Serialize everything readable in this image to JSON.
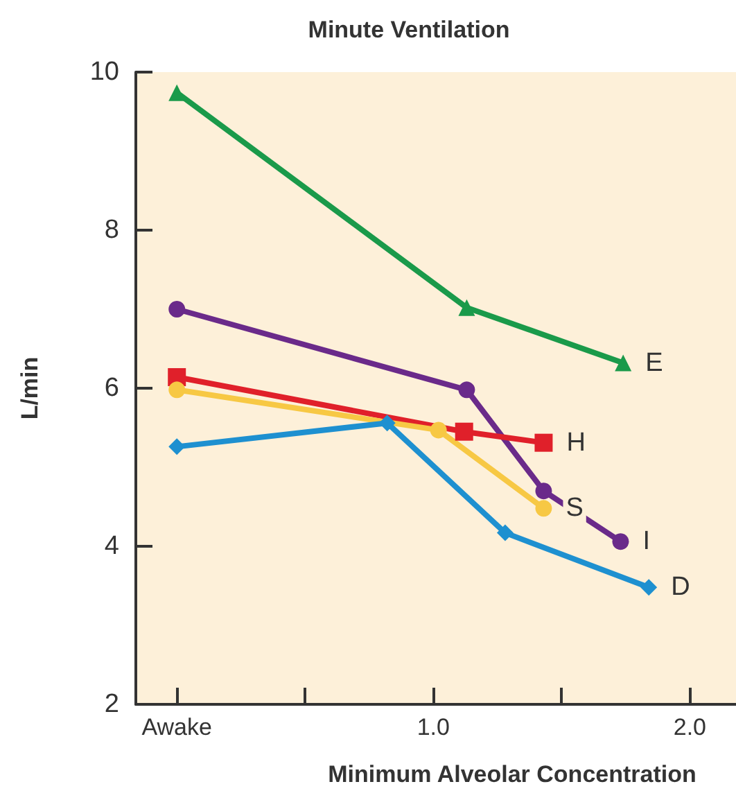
{
  "chart_data": {
    "type": "line",
    "title": "Minute Ventilation",
    "xlabel": "Minimum Alveolar Concentration",
    "ylabel": "L/min",
    "xlim": [
      -0.16,
      2.18
    ],
    "xticks": [
      {
        "value": 0,
        "label": "Awake"
      },
      {
        "value": 0.5,
        "label": null
      },
      {
        "value": 1,
        "label": "1.0"
      },
      {
        "value": 1.5,
        "label": null
      },
      {
        "value": 2,
        "label": "2.0"
      }
    ],
    "ylim": [
      2,
      10
    ],
    "yticks": [
      2,
      4,
      6,
      8,
      10
    ],
    "grid": false,
    "legend": false,
    "series": [
      {
        "name": "E",
        "color": "#1a9a4a",
        "marker": "triangle",
        "x": [
          0,
          1.13,
          1.74
        ],
        "values": [
          9.74,
          7.02,
          6.32
        ]
      },
      {
        "name": "I",
        "color": "#6a2a8a",
        "marker": "circle",
        "x": [
          0,
          1.13,
          1.43,
          1.73
        ],
        "values": [
          7.0,
          5.98,
          4.7,
          4.06
        ]
      },
      {
        "name": "H",
        "color": "#e0202a",
        "marker": "square",
        "x": [
          0,
          1.12,
          1.43
        ],
        "values": [
          6.14,
          5.45,
          5.31
        ]
      },
      {
        "name": "S",
        "color": "#f7c844",
        "marker": "circle",
        "x": [
          0,
          1.02,
          1.43
        ],
        "values": [
          5.98,
          5.47,
          4.48
        ]
      },
      {
        "name": "D",
        "color": "#1e90d0",
        "marker": "diamond",
        "x": [
          0,
          0.82,
          1.28,
          1.84
        ],
        "values": [
          5.26,
          5.56,
          4.17,
          3.48
        ]
      }
    ]
  }
}
